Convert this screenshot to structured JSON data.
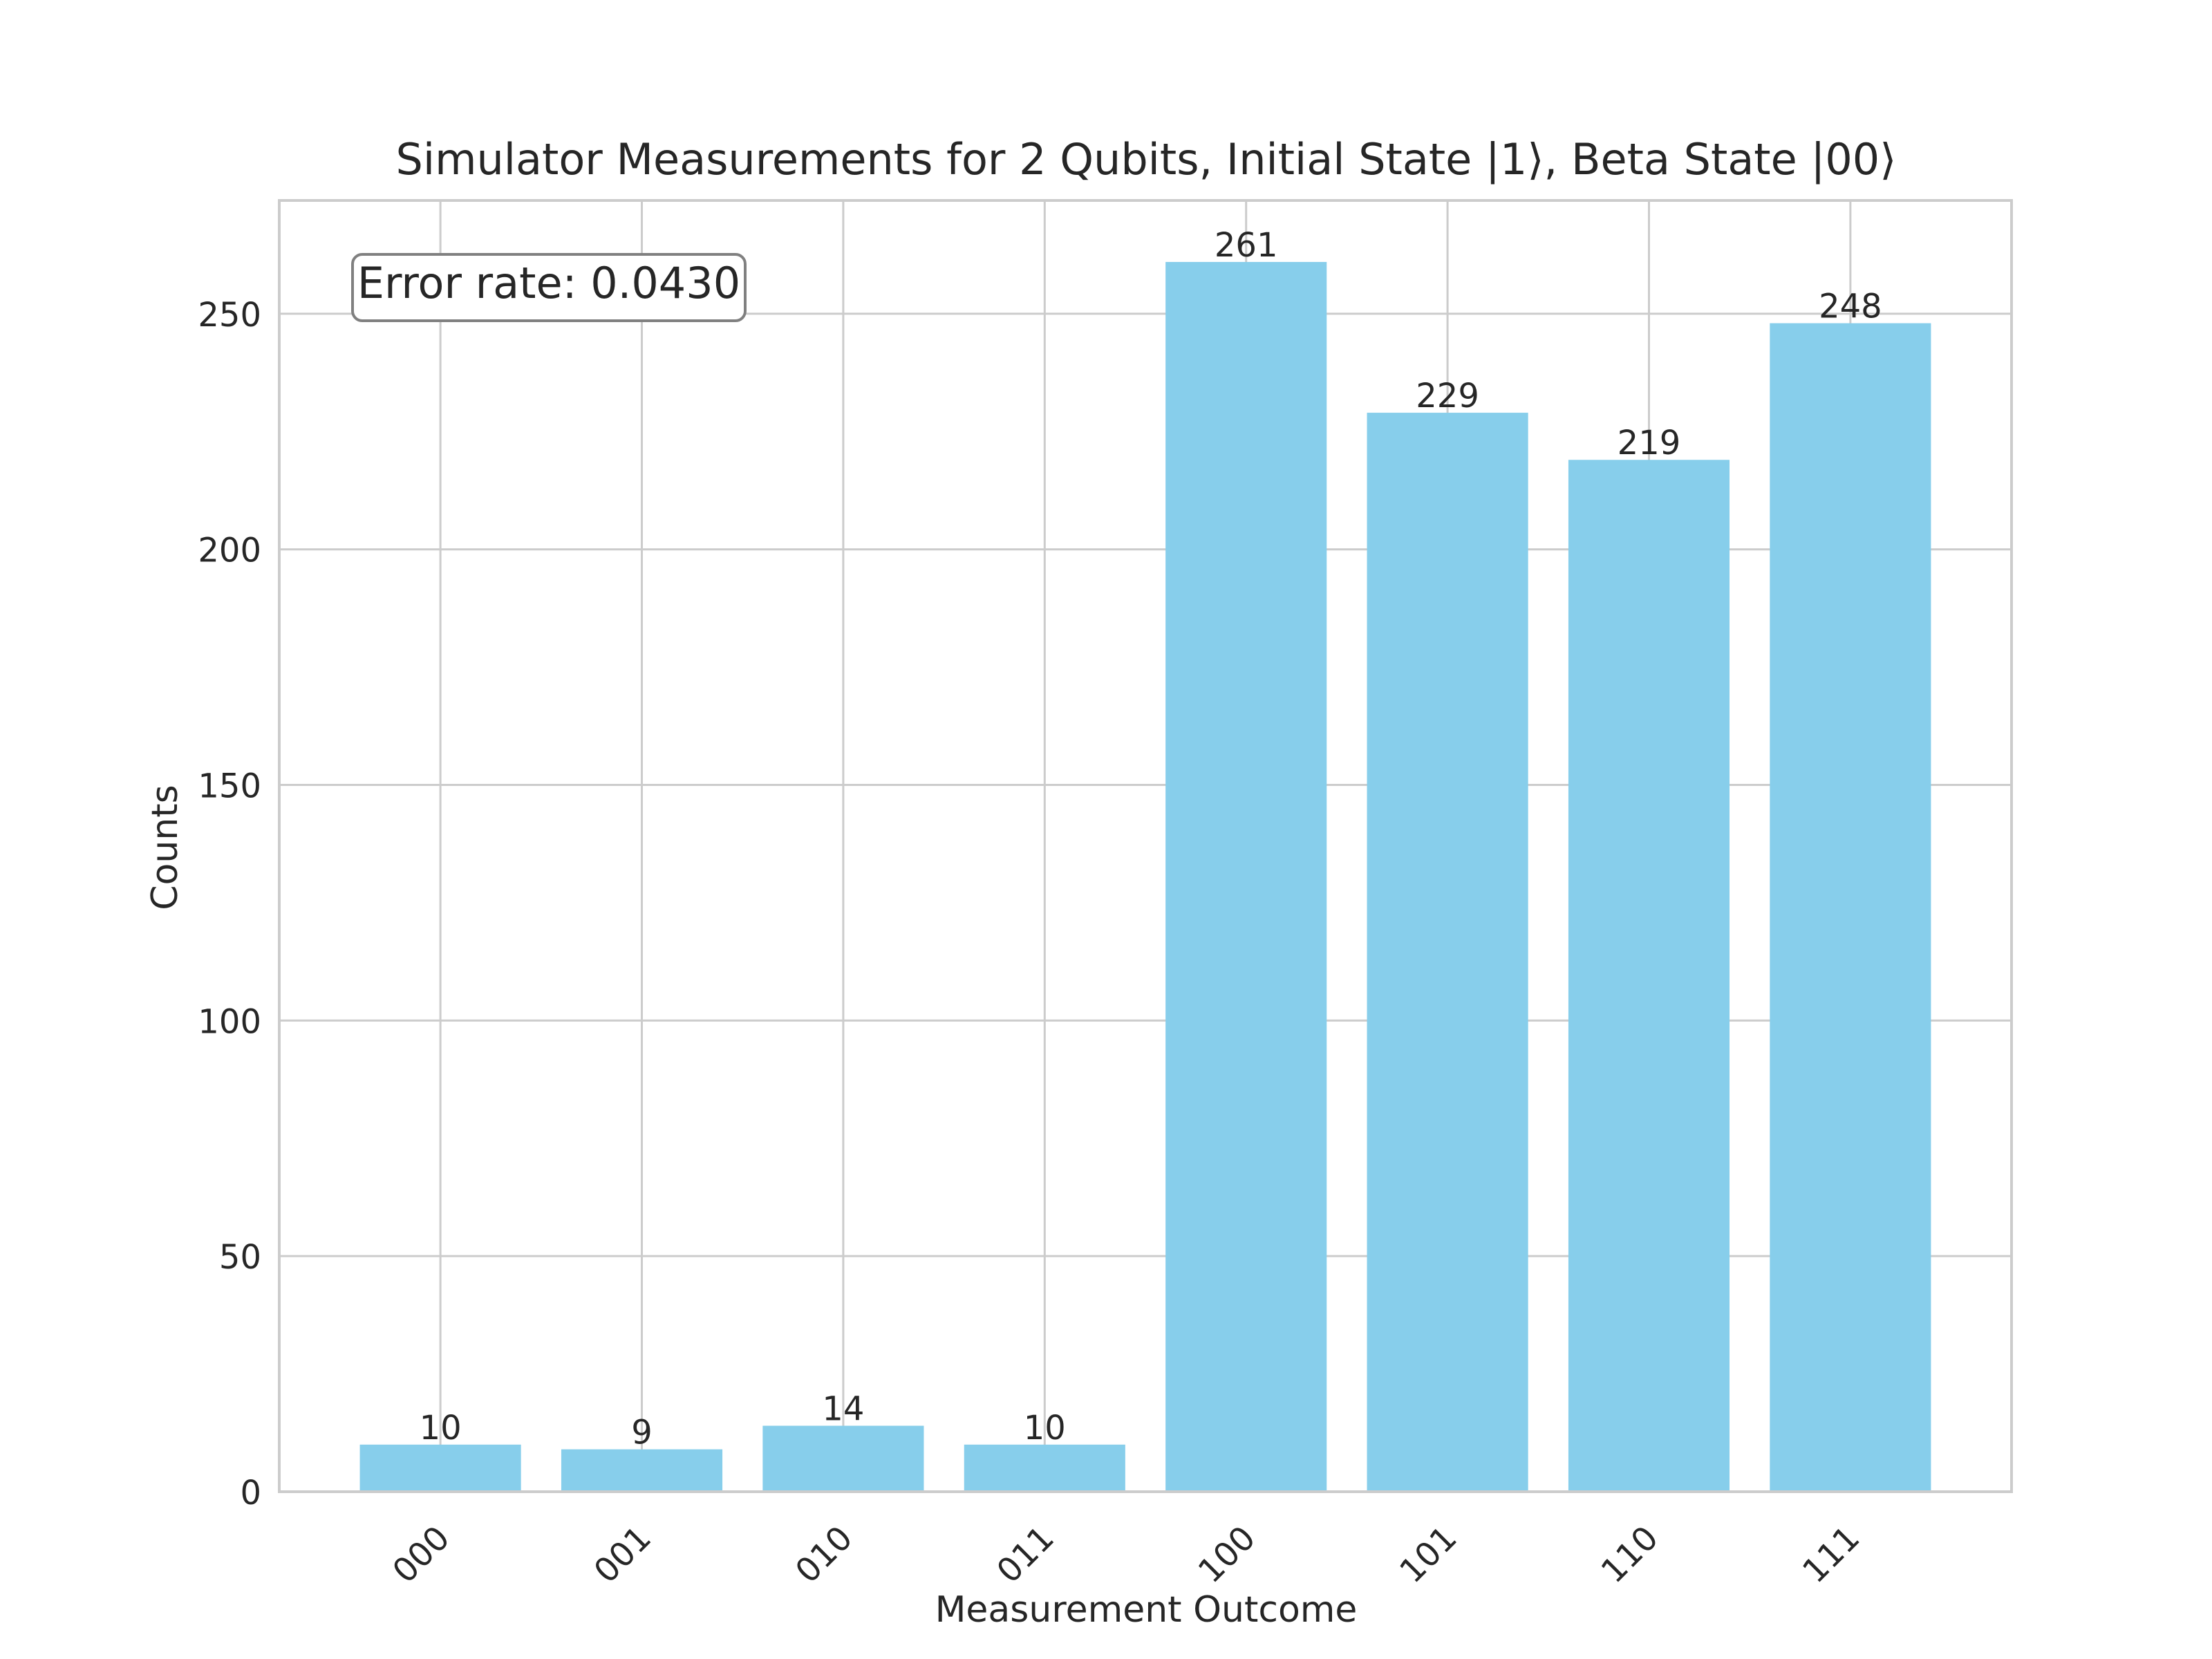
{
  "chart_data": {
    "type": "bar",
    "title": "Simulator Measurements for 2 Qubits, Initial State |1⟩, Beta State |00⟩",
    "xlabel": "Measurement Outcome",
    "ylabel": "Counts",
    "categories": [
      "000",
      "001",
      "010",
      "011",
      "100",
      "101",
      "110",
      "111"
    ],
    "values": [
      10,
      9,
      14,
      10,
      261,
      229,
      219,
      248
    ],
    "ylim": [
      0,
      274.05
    ],
    "yticks": [
      0,
      50,
      100,
      150,
      200,
      250
    ],
    "grid": true,
    "bar_color": "#87ceeb",
    "annotation": "Error rate: 0.0430"
  }
}
